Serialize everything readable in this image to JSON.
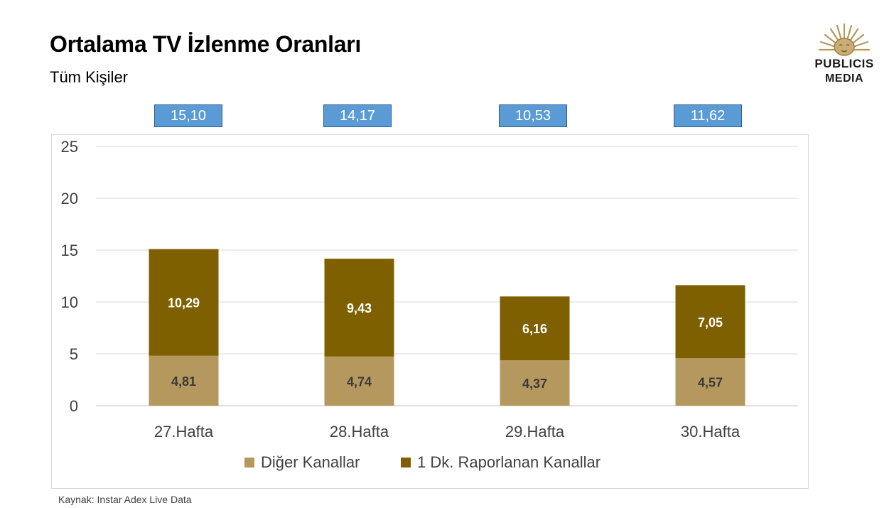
{
  "header": {
    "title": "Ortalama TV İzlenme Oranları",
    "subtitle": "Tüm Kişiler"
  },
  "logo": {
    "line1": "PUBLICIS",
    "line2": "MEDIA",
    "icon": "sun-face-icon"
  },
  "totals": [
    "15,10",
    "14,17",
    "10,53",
    "11,62"
  ],
  "footer": {
    "source": "Kaynak: Instar  Adex Live Data"
  },
  "colors": {
    "bottom_series": "#b5985e",
    "top_series": "#7f6000",
    "total_box": "#5b9bd5"
  },
  "chart_data": {
    "type": "bar",
    "stacked": true,
    "categories": [
      "27.Hafta",
      "28.Hafta",
      "29.Hafta",
      "30.Hafta"
    ],
    "series": [
      {
        "name": "Diğer Kanallar",
        "values": [
          4.81,
          4.74,
          4.37,
          4.57
        ],
        "labels": [
          "4,81",
          "4,74",
          "4,37",
          "4,57"
        ],
        "color": "#b5985e",
        "label_color": "#3a3a3a"
      },
      {
        "name": "1 Dk. Raporlanan Kanallar",
        "values": [
          10.29,
          9.43,
          6.16,
          7.05
        ],
        "labels": [
          "10,29",
          "9,43",
          "6,16",
          "7,05"
        ],
        "color": "#7f6000",
        "label_color": "#ffffff"
      }
    ],
    "ylim": [
      0,
      25
    ],
    "yticks": [
      0,
      5,
      10,
      15,
      20,
      25
    ],
    "grid": true,
    "legend": "bottom"
  }
}
